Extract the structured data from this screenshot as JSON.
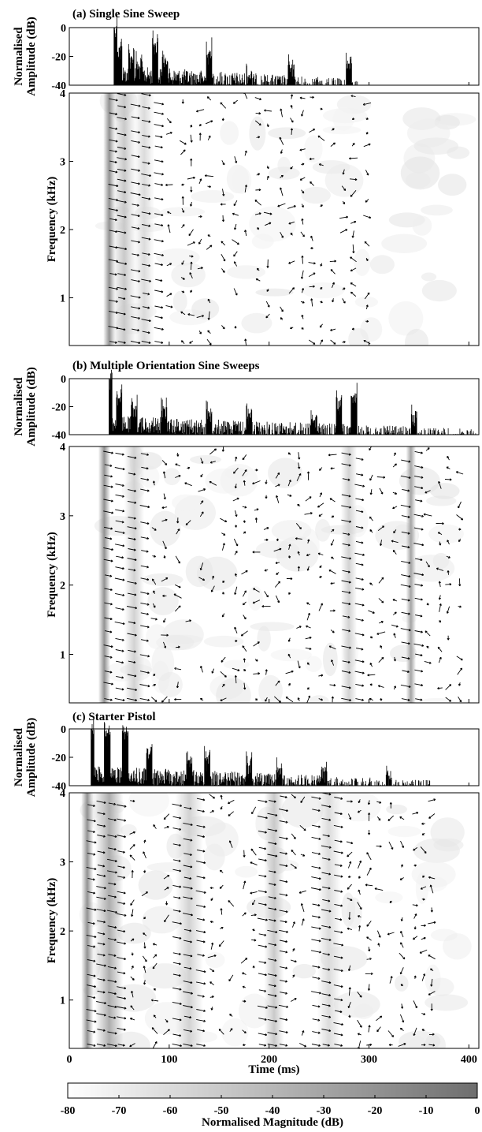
{
  "figure": {
    "xlabel": "Time (ms)",
    "colorbar": {
      "label": "Normalised Magnitude (dB)",
      "range": [
        -80,
        0
      ],
      "ticks": [
        -80,
        -70,
        -60,
        -50,
        -40,
        -30,
        -20,
        -10,
        0
      ],
      "tick_labels": [
        "-80",
        "-70",
        "-60",
        "-50",
        "-40",
        "-30",
        "-20",
        "-10",
        "0"
      ],
      "colors": {
        "low": "#ffffff",
        "high": "#6e6e6e"
      }
    }
  },
  "chart_data": [
    {
      "type": "area",
      "panel": "a",
      "title": "(a) Single Sine Sweep",
      "ylabel_line1": "Normalised",
      "ylabel_line2": "Amplitude (dB)",
      "ylim": [
        -40,
        0
      ],
      "yticks": [
        0,
        -20,
        -40
      ],
      "ytick_labels": [
        "0",
        "-20",
        "-40"
      ],
      "xlim": [
        0,
        410
      ],
      "onset_ms": 45,
      "end_ms": 290,
      "peaks": [
        {
          "t": 45,
          "db": 0
        },
        {
          "t": 50,
          "db": -14
        },
        {
          "t": 62,
          "db": -20
        },
        {
          "t": 70,
          "db": -27
        },
        {
          "t": 86,
          "db": -11
        },
        {
          "t": 96,
          "db": -22
        },
        {
          "t": 140,
          "db": -17
        },
        {
          "t": 180,
          "db": -33
        },
        {
          "t": 222,
          "db": -28
        },
        {
          "t": 280,
          "db": -25
        }
      ]
    },
    {
      "type": "heatmap",
      "panel": "a",
      "ylabel": "Frequency (kHz)",
      "ylim": [
        0.3,
        4
      ],
      "yticks": [
        1,
        2,
        3,
        4
      ],
      "ytick_labels": [
        "1",
        "2",
        "3",
        "4"
      ],
      "xlim": [
        0,
        410
      ],
      "ridges": [
        {
          "t": 40,
          "db": -20,
          "w": 6
        },
        {
          "t": 55,
          "db": -50,
          "w": 12
        },
        {
          "t": 75,
          "db": -60,
          "w": 10
        }
      ]
    },
    {
      "type": "area",
      "panel": "b",
      "title": "(b) Multiple Orientation Sine Sweeps",
      "ylabel_line1": "Normalised",
      "ylabel_line2": "Amplitude (dB)",
      "ylim": [
        -40,
        0
      ],
      "yticks": [
        0,
        -20,
        -40
      ],
      "ytick_labels": [
        "0",
        "-20",
        "-40"
      ],
      "xlim": [
        0,
        410
      ],
      "onset_ms": 40,
      "end_ms": 408,
      "peaks": [
        {
          "t": 40,
          "db": 0
        },
        {
          "t": 50,
          "db": -14
        },
        {
          "t": 65,
          "db": -22
        },
        {
          "t": 95,
          "db": -22
        },
        {
          "t": 140,
          "db": -24
        },
        {
          "t": 180,
          "db": -25
        },
        {
          "t": 245,
          "db": -30
        },
        {
          "t": 270,
          "db": -16
        },
        {
          "t": 285,
          "db": -12
        },
        {
          "t": 345,
          "db": -26
        }
      ]
    },
    {
      "type": "heatmap",
      "panel": "b",
      "ylabel": "Frequency (kHz)",
      "ylim": [
        0.3,
        4
      ],
      "yticks": [
        1,
        2,
        3,
        4
      ],
      "ytick_labels": [
        "1",
        "2",
        "3",
        "4"
      ],
      "xlim": [
        0,
        410
      ],
      "ridges": [
        {
          "t": 35,
          "db": -20,
          "w": 6
        },
        {
          "t": 65,
          "db": -55,
          "w": 10
        },
        {
          "t": 280,
          "db": -55,
          "w": 8
        },
        {
          "t": 342,
          "db": -30,
          "w": 5
        }
      ]
    },
    {
      "type": "area",
      "panel": "c",
      "title": "(c) Starter Pistol",
      "ylabel_line1": "Normalised",
      "ylabel_line2": "Amplitude (dB)",
      "ylim": [
        -40,
        0
      ],
      "yticks": [
        0,
        -20,
        -40
      ],
      "ytick_labels": [
        "0",
        "-20",
        "-40"
      ],
      "xlim": [
        0,
        410
      ],
      "onset_ms": 22,
      "end_ms": 362,
      "peaks": [
        {
          "t": 22,
          "db": 0
        },
        {
          "t": 38,
          "db": -3
        },
        {
          "t": 56,
          "db": -2
        },
        {
          "t": 80,
          "db": -18
        },
        {
          "t": 120,
          "db": -22
        },
        {
          "t": 138,
          "db": -20
        },
        {
          "t": 180,
          "db": -26
        },
        {
          "t": 210,
          "db": -28
        },
        {
          "t": 255,
          "db": -30
        },
        {
          "t": 320,
          "db": -33
        }
      ]
    },
    {
      "type": "heatmap",
      "panel": "c",
      "ylabel": "Frequency (kHz)",
      "ylim": [
        0.3,
        4
      ],
      "yticks": [
        1,
        2,
        3,
        4
      ],
      "ytick_labels": [
        "1",
        "2",
        "3",
        "4"
      ],
      "xlabel": "Time (ms)",
      "xlim": [
        0,
        410
      ],
      "xticks": [
        0,
        100,
        200,
        300,
        400
      ],
      "xtick_labels": [
        "0",
        "100",
        "200",
        "300",
        "400"
      ],
      "ridges": [
        {
          "t": 18,
          "db": -20,
          "w": 6
        },
        {
          "t": 40,
          "db": -35,
          "w": 14
        },
        {
          "t": 120,
          "db": -55,
          "w": 14
        },
        {
          "t": 205,
          "db": -50,
          "w": 10
        },
        {
          "t": 260,
          "db": -60,
          "w": 12
        }
      ]
    }
  ]
}
